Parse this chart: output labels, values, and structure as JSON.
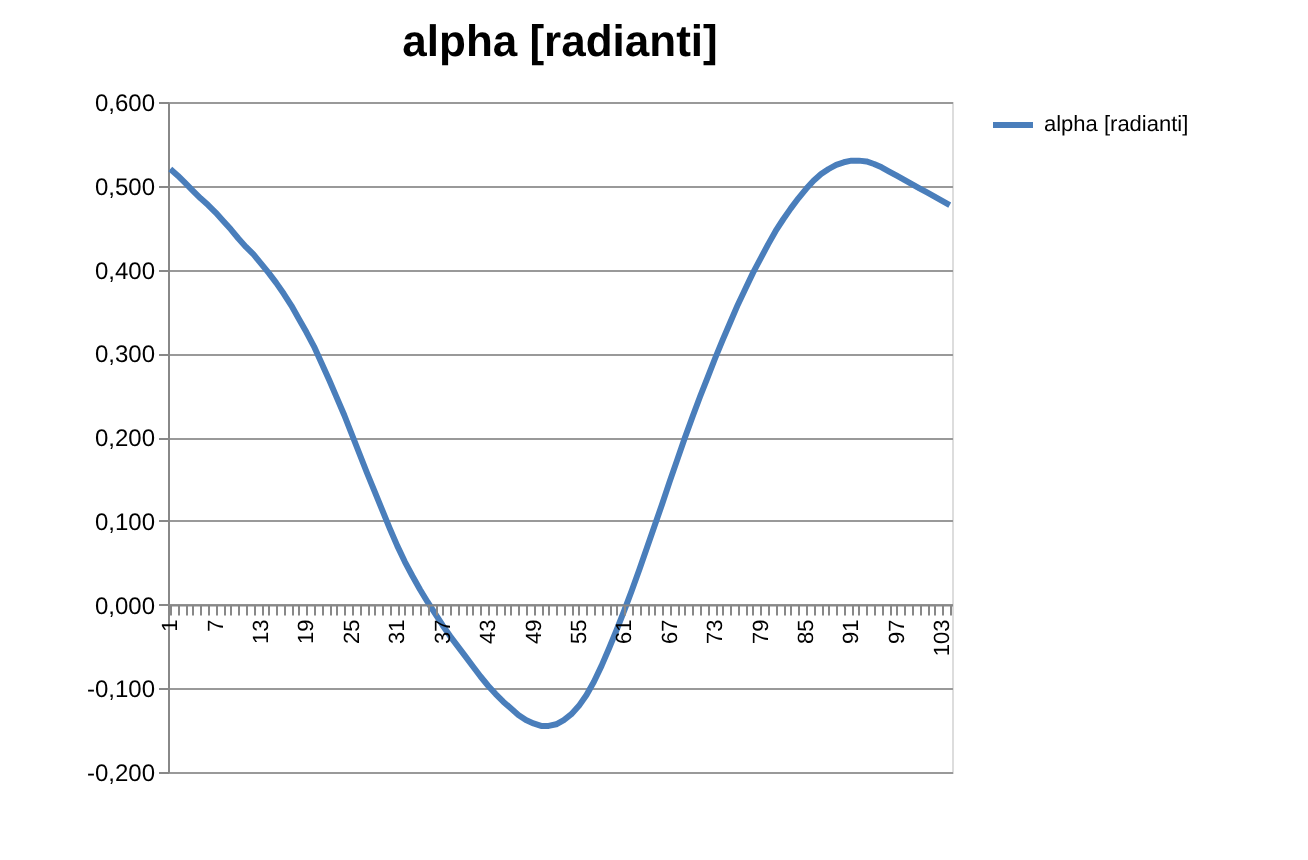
{
  "chart_data": {
    "type": "line",
    "title": "alpha [radianti]",
    "categories": [
      "1",
      null,
      null,
      null,
      null,
      null,
      "7",
      null,
      null,
      null,
      null,
      null,
      "13",
      null,
      null,
      null,
      null,
      null,
      "19",
      null,
      null,
      null,
      null,
      null,
      "25",
      null,
      null,
      null,
      null,
      null,
      "31",
      null,
      null,
      null,
      null,
      null,
      "37",
      null,
      null,
      null,
      null,
      null,
      "43",
      null,
      null,
      null,
      null,
      null,
      "49",
      null,
      null,
      null,
      null,
      null,
      "55",
      null,
      null,
      null,
      null,
      null,
      "61",
      null,
      null,
      null,
      null,
      null,
      "67",
      null,
      null,
      null,
      null,
      null,
      "73",
      null,
      null,
      null,
      null,
      null,
      "79",
      null,
      null,
      null,
      null,
      null,
      "85",
      null,
      null,
      null,
      null,
      null,
      "91",
      null,
      null,
      null,
      null,
      null,
      "97",
      null,
      null,
      null,
      null,
      null,
      "103",
      null
    ],
    "series": [
      {
        "name": "alpha [radianti]",
        "color": "#4a7ebb",
        "values": [
          0.52,
          0.512,
          0.503,
          0.494,
          0.485,
          0.477,
          0.468,
          0.458,
          0.448,
          0.437,
          0.427,
          0.418,
          0.407,
          0.396,
          0.384,
          0.371,
          0.357,
          0.341,
          0.325,
          0.308,
          0.288,
          0.268,
          0.247,
          0.226,
          0.203,
          0.18,
          0.157,
          0.135,
          0.113,
          0.091,
          0.07,
          0.051,
          0.034,
          0.018,
          0.003,
          -0.011,
          -0.025,
          -0.038,
          -0.05,
          -0.062,
          -0.074,
          -0.086,
          -0.097,
          -0.107,
          -0.116,
          -0.124,
          -0.132,
          -0.138,
          -0.142,
          -0.145,
          -0.145,
          -0.143,
          -0.138,
          -0.131,
          -0.121,
          -0.108,
          -0.092,
          -0.073,
          -0.052,
          -0.03,
          -0.007,
          0.017,
          0.042,
          0.068,
          0.094,
          0.12,
          0.147,
          0.173,
          0.199,
          0.224,
          0.248,
          0.271,
          0.294,
          0.316,
          0.337,
          0.358,
          0.377,
          0.396,
          0.413,
          0.43,
          0.446,
          0.46,
          0.473,
          0.485,
          0.496,
          0.506,
          0.514,
          0.52,
          0.525,
          0.528,
          0.53,
          0.53,
          0.529,
          0.526,
          0.522,
          0.517,
          0.512,
          0.507,
          0.502,
          0.497,
          0.492,
          0.487,
          0.482,
          0.477
        ]
      }
    ],
    "ylim": [
      -0.2,
      0.6
    ],
    "yticks": [
      {
        "value": -0.2,
        "label": "-0,200"
      },
      {
        "value": -0.1,
        "label": "-0,100"
      },
      {
        "value": 0,
        "label": "0,000"
      },
      {
        "value": 0.1,
        "label": "0,100"
      },
      {
        "value": 0.2,
        "label": "0,200"
      },
      {
        "value": 0.3,
        "label": "0,300"
      },
      {
        "value": 0.4,
        "label": "0,400"
      },
      {
        "value": 0.5,
        "label": "0,500"
      },
      {
        "value": 0.6,
        "label": "0,600"
      }
    ],
    "grid": "y",
    "legend": "right",
    "marker": "none",
    "line_style": "solid"
  }
}
